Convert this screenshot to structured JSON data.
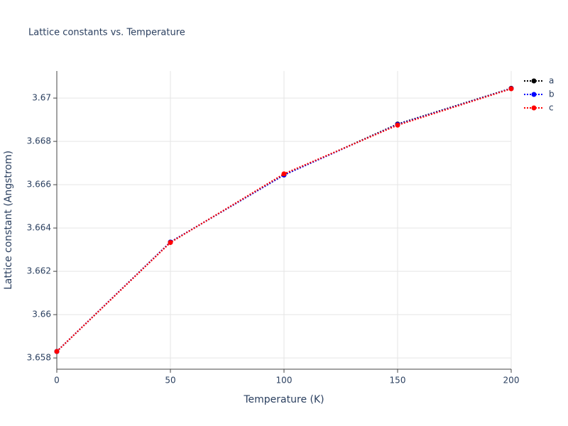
{
  "chart_data": {
    "type": "line",
    "title": "Lattice constants vs. Temperature",
    "x_label": "Temperature (K)",
    "y_label": "Lattice constant (Angstrom)",
    "x": [
      0,
      50,
      100,
      150,
      200
    ],
    "series": [
      {
        "name": "a",
        "color": "#000000",
        "values": [
          3.6583,
          3.66335,
          3.66645,
          3.6688,
          3.67045
        ]
      },
      {
        "name": "b",
        "color": "#0000ff",
        "values": [
          3.6583,
          3.66335,
          3.66645,
          3.66878,
          3.67044
        ]
      },
      {
        "name": "c",
        "color": "#ff0000",
        "values": [
          3.6583,
          3.66333,
          3.6665,
          3.66875,
          3.67043
        ]
      }
    ],
    "xlim": [
      0,
      200
    ],
    "xticks": [
      0,
      50,
      100,
      150,
      200
    ],
    "ylim": [
      3.65748,
      3.67125
    ],
    "yticks": [
      3.658,
      3.66,
      3.662,
      3.664,
      3.666,
      3.668,
      3.67
    ],
    "grid": true,
    "legend": "top-right"
  }
}
